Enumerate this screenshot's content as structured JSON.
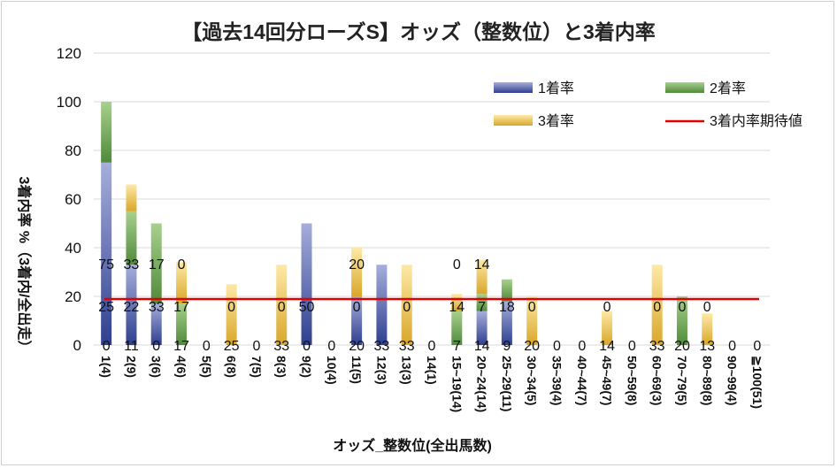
{
  "chart_data": {
    "type": "bar",
    "title": "【過去14回分ローズS】オッズ（整数位）と3着内率",
    "xlabel": "オッズ_整数位(全出馬数)",
    "ylabel": "3着内率 %（3着内/全出走）",
    "ylim": [
      0,
      120
    ],
    "yticks": [
      0,
      20,
      40,
      60,
      80,
      100,
      120
    ],
    "grid": true,
    "legend_position": "top-right",
    "categories": [
      "1(4)",
      "2(9)",
      "3(6)",
      "4(6)",
      "5(5)",
      "6(8)",
      "7(5)",
      "8(3)",
      "9(2)",
      "10(4)",
      "11(5)",
      "12(3)",
      "13(3)",
      "14(1)",
      "15~19(14)",
      "20~24(14)",
      "25~29(11)",
      "30~34(5)",
      "35~39(4)",
      "40~44(7)",
      "45~49(7)",
      "50~59(8)",
      "60~69(3)",
      "70~79(5)",
      "80~89(8)",
      "90~99(4)",
      "≧100(51)"
    ],
    "series": [
      {
        "name": "1着率",
        "color": "#2e3f8f",
        "values": [
          75,
          33,
          17,
          0,
          0,
          0,
          0,
          0,
          50,
          0,
          20,
          33,
          0,
          0,
          0,
          14,
          18,
          0,
          0,
          0,
          0,
          0,
          0,
          0,
          0,
          0,
          0
        ]
      },
      {
        "name": "2着率",
        "color": "#4f8a3a",
        "values": [
          25,
          22,
          33,
          17,
          0,
          0,
          0,
          0,
          0,
          0,
          0,
          0,
          0,
          0,
          14,
          7,
          9,
          0,
          0,
          0,
          0,
          0,
          0,
          20,
          0,
          0,
          0
        ]
      },
      {
        "name": "3着率",
        "color": "#d9a72a",
        "values": [
          0,
          11,
          0,
          17,
          0,
          25,
          0,
          33,
          0,
          0,
          20,
          0,
          33,
          0,
          7,
          14,
          0,
          20,
          0,
          0,
          14,
          0,
          33,
          0,
          13,
          0,
          0
        ]
      }
    ],
    "reference_line": {
      "name": "3着内率期待値",
      "color": "#e00000",
      "value": 18.9
    },
    "data_labels": [
      [
        "0",
        "25",
        "75"
      ],
      [
        "11",
        "22",
        "33"
      ],
      [
        "0",
        "33",
        "17"
      ],
      [
        "17",
        "17",
        "0"
      ],
      [
        "0"
      ],
      [
        "25",
        "0"
      ],
      [
        "0"
      ],
      [
        "33",
        "0"
      ],
      [
        "0",
        "50"
      ],
      [
        "0"
      ],
      [
        "20",
        "0",
        "20"
      ],
      [
        "33"
      ],
      [
        "33",
        "0"
      ],
      [
        "0"
      ],
      [
        "7",
        "14",
        "0"
      ],
      [
        "14",
        "7",
        "14"
      ],
      [
        "9",
        "18"
      ],
      [
        "20",
        "0"
      ],
      [
        "0"
      ],
      [
        "0"
      ],
      [
        "14",
        "0"
      ],
      [
        "0"
      ],
      [
        "33",
        "0"
      ],
      [
        "20",
        "0"
      ],
      [
        "13",
        "0"
      ],
      [
        "0"
      ],
      [
        "0"
      ]
    ]
  }
}
